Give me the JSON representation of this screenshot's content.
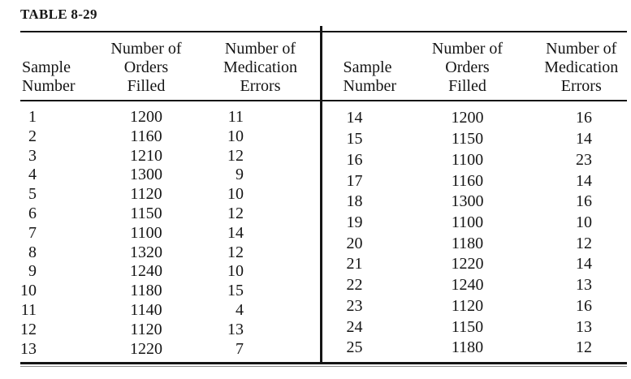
{
  "title": "TABLE 8-29",
  "columns": {
    "sample": [
      "Sample",
      "Number"
    ],
    "orders": [
      "Number of",
      "Orders",
      "Filled"
    ],
    "errors": [
      "Number of",
      "Medication",
      "Errors"
    ]
  },
  "left_rows": [
    [
      1,
      1200,
      11
    ],
    [
      2,
      1160,
      10
    ],
    [
      3,
      1210,
      12
    ],
    [
      4,
      1300,
      9
    ],
    [
      5,
      1120,
      10
    ],
    [
      6,
      1150,
      12
    ],
    [
      7,
      1100,
      14
    ],
    [
      8,
      1320,
      12
    ],
    [
      9,
      1240,
      10
    ],
    [
      10,
      1180,
      15
    ],
    [
      11,
      1140,
      4
    ],
    [
      12,
      1120,
      13
    ],
    [
      13,
      1220,
      7
    ]
  ],
  "right_rows": [
    [
      14,
      1200,
      16
    ],
    [
      15,
      1150,
      14
    ],
    [
      16,
      1100,
      23
    ],
    [
      17,
      1160,
      14
    ],
    [
      18,
      1300,
      16
    ],
    [
      19,
      1100,
      10
    ],
    [
      20,
      1180,
      12
    ],
    [
      21,
      1220,
      14
    ],
    [
      22,
      1240,
      13
    ],
    [
      23,
      1120,
      16
    ],
    [
      24,
      1150,
      13
    ],
    [
      25,
      1180,
      12
    ]
  ],
  "colors": {
    "text": "#151515",
    "rule": "#151515",
    "thin_rule": "#8c8c8c",
    "background": "#ffffff"
  }
}
